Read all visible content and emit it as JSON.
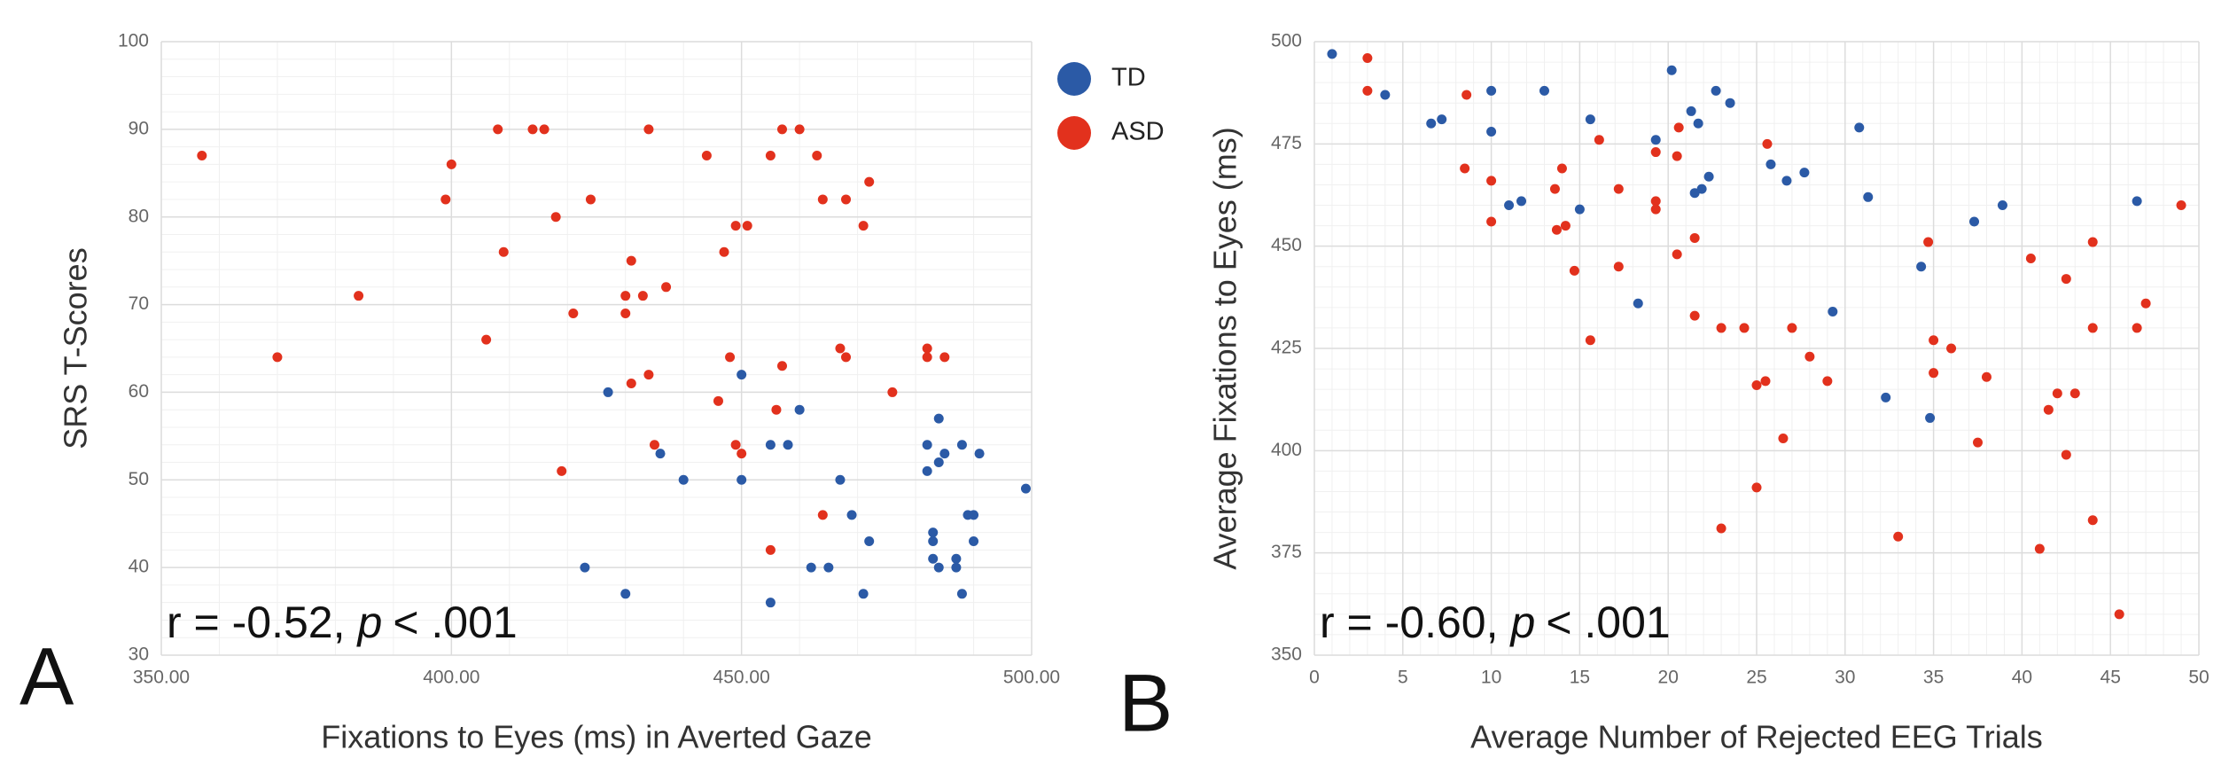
{
  "chart_data": [
    {
      "type": "scatter",
      "panel_label": "A",
      "xlabel": "Fixations to Eyes (ms) in Averted Gaze",
      "ylabel": "SRS T-Scores",
      "xlim": [
        350,
        500
      ],
      "ylim": [
        30,
        100
      ],
      "xticks": [
        {
          "value": 350,
          "label": "350.00"
        },
        {
          "value": 400,
          "label": "400.00"
        },
        {
          "value": 450,
          "label": "450.00"
        },
        {
          "value": 500,
          "label": "500.00"
        }
      ],
      "yticks": [
        30,
        40,
        50,
        60,
        70,
        80,
        90,
        100
      ],
      "grid": true,
      "legend": "outside right",
      "annotation": {
        "prefix": "r = -0.52,",
        "italic": "p",
        "suffix": "< .001"
      },
      "series": [
        {
          "name": "TD",
          "color": "#2b5aa6",
          "x": [
            427,
            423,
            430,
            436,
            440,
            450,
            450,
            455,
            455,
            458,
            460,
            462,
            465,
            467,
            469,
            472,
            471,
            482,
            482,
            483,
            483,
            483,
            484,
            484,
            484,
            485,
            487,
            487,
            488,
            488,
            489,
            490,
            490,
            491,
            499
          ],
          "values": [
            60,
            40,
            37,
            53,
            50,
            62,
            50,
            54,
            36,
            54,
            58,
            40,
            40,
            50,
            46,
            43,
            37,
            54,
            51,
            41,
            44,
            43,
            52,
            57,
            40,
            53,
            40,
            41,
            54,
            37,
            46,
            46,
            43,
            53,
            49
          ]
        },
        {
          "name": "ASD",
          "color": "#e2311d",
          "x": [
            357,
            370,
            384,
            399,
            400,
            408,
            406,
            409,
            414,
            416,
            418,
            419,
            421,
            424,
            430,
            430,
            431,
            433,
            434,
            431,
            434,
            435,
            437,
            444,
            446,
            447,
            448,
            449,
            449,
            450,
            451,
            455,
            455,
            456,
            457,
            457,
            460,
            463,
            464,
            464,
            468,
            467,
            468,
            472,
            471,
            476,
            482,
            482,
            485
          ],
          "values": [
            87,
            64,
            71,
            82,
            86,
            90,
            66,
            76,
            90,
            90,
            80,
            51,
            69,
            82,
            71,
            69,
            75,
            71,
            90,
            61,
            62,
            54,
            72,
            87,
            59,
            76,
            64,
            54,
            79,
            53,
            79,
            87,
            42,
            58,
            90,
            63,
            90,
            87,
            82,
            46,
            82,
            65,
            64,
            84,
            79,
            60,
            65,
            64,
            64
          ]
        }
      ]
    },
    {
      "type": "scatter",
      "panel_label": "B",
      "xlabel": "Average Number of Rejected EEG Trials",
      "ylabel": "Average Fixations to Eyes (ms)",
      "xlim": [
        0,
        50
      ],
      "ylim": [
        350,
        500
      ],
      "xticks": [
        0,
        5,
        10,
        15,
        20,
        25,
        30,
        35,
        40,
        45,
        50
      ],
      "yticks": [
        350,
        375,
        400,
        425,
        450,
        475,
        500
      ],
      "grid": true,
      "annotation": {
        "prefix": "r = -0.60,",
        "italic": "p",
        "suffix": "< .001"
      },
      "series": [
        {
          "color": "#2b5aa6",
          "x": [
            1,
            4,
            6.6,
            7.2,
            10,
            10,
            11,
            11.7,
            13,
            15,
            15.6,
            18.3,
            19.3,
            20.2,
            21.3,
            21.5,
            21.7,
            22.3,
            22.7,
            21.9,
            23.5,
            25.8,
            26.7,
            27.7,
            29.3,
            30.8,
            31.3,
            32.3,
            34.3,
            34.8,
            37.3,
            38.9,
            46.5
          ],
          "values": [
            497,
            487,
            480,
            481,
            488,
            478,
            460,
            461,
            488,
            459,
            481,
            436,
            476,
            493,
            483,
            463,
            480,
            467,
            488,
            464,
            485,
            470,
            466,
            468,
            434,
            479,
            462,
            413,
            445,
            408,
            456,
            460,
            461
          ]
        },
        {
          "color": "#e2311d",
          "x": [
            3,
            3,
            8.6,
            8.5,
            10,
            10,
            13.6,
            13.7,
            14,
            14.2,
            14.7,
            15.6,
            16.1,
            17.2,
            17.2,
            19.3,
            19.3,
            19.3,
            20.6,
            20.5,
            20.5,
            21.5,
            21.5,
            23,
            23,
            24.3,
            25,
            25.5,
            25.6,
            25,
            26.5,
            27,
            28,
            29,
            33,
            34.7,
            35,
            35,
            36,
            38,
            37.5,
            40.5,
            41,
            41.5,
            42,
            42.5,
            42.5,
            43,
            44,
            44,
            44,
            46.5,
            47,
            45.5,
            49
          ],
          "values": [
            496,
            488,
            487,
            469,
            466,
            456,
            464,
            454,
            469,
            455,
            444,
            427,
            476,
            464,
            445,
            473,
            461,
            459,
            479,
            472,
            448,
            452,
            433,
            381,
            430,
            430,
            416,
            417,
            475,
            391,
            403,
            430,
            423,
            417,
            379,
            451,
            427,
            419,
            425,
            418,
            402,
            447,
            376,
            410,
            414,
            442,
            399,
            414,
            451,
            430,
            383,
            430,
            436,
            360,
            460
          ]
        }
      ]
    }
  ]
}
